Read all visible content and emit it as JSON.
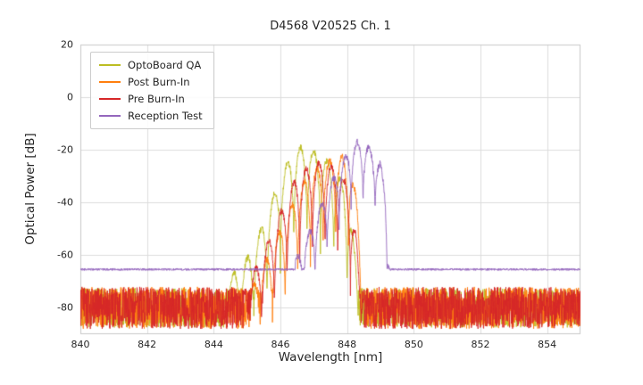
{
  "chart_data": {
    "type": "line",
    "title": "D4568 V20525 Ch. 1",
    "xlabel": "Wavelength [nm]",
    "ylabel": "Optical Power [dB]",
    "xlim": [
      840,
      855
    ],
    "ylim": [
      -90,
      20
    ],
    "xticks": [
      840,
      842,
      844,
      846,
      848,
      850,
      852,
      854
    ],
    "yticks": [
      20,
      0,
      -20,
      -40,
      -60,
      -80
    ],
    "grid": true,
    "legend_position": "upper left",
    "series": [
      {
        "name": "OptoBoard QA",
        "color": "#bcbd22",
        "noise_floor": {
          "mean": -80,
          "amplitude": 7.5
        },
        "signal": {
          "range": [
            844.3,
            848.35
          ],
          "mode_spacing": 0.4,
          "mode_phase": 846.4,
          "valley_depth": 38,
          "envelope": [
            [
              844.3,
              -69
            ],
            [
              844.8,
              -65
            ],
            [
              845.2,
              -57
            ],
            [
              845.6,
              -44
            ],
            [
              846.0,
              -30
            ],
            [
              846.3,
              -23
            ],
            [
              846.6,
              -19
            ],
            [
              846.95,
              -20
            ],
            [
              847.3,
              -23
            ],
            [
              847.6,
              -27
            ],
            [
              847.9,
              -33
            ],
            [
              848.1,
              -45
            ],
            [
              848.25,
              -62
            ],
            [
              848.35,
              -76
            ]
          ]
        }
      },
      {
        "name": "Post Burn-In",
        "color": "#ff7f0e",
        "noise_floor": {
          "mean": -80,
          "amplitude": 8
        },
        "signal": {
          "range": [
            845.1,
            848.55
          ],
          "mode_spacing": 0.38,
          "mode_phase": 847.66,
          "valley_depth": 36,
          "envelope": [
            [
              845.1,
              -73
            ],
            [
              845.5,
              -64
            ],
            [
              845.9,
              -53
            ],
            [
              846.3,
              -42
            ],
            [
              846.7,
              -32
            ],
            [
              847.1,
              -27
            ],
            [
              847.5,
              -24
            ],
            [
              847.85,
              -22
            ],
            [
              848.1,
              -27
            ],
            [
              848.3,
              -40
            ],
            [
              848.45,
              -60
            ],
            [
              848.55,
              -77
            ]
          ]
        }
      },
      {
        "name": "Pre Burn-In",
        "color": "#d62728",
        "noise_floor": {
          "mean": -80,
          "amplitude": 8
        },
        "signal": {
          "range": [
            844.9,
            848.4
          ],
          "mode_spacing": 0.38,
          "mode_phase": 846.96,
          "valley_depth": 36,
          "envelope": [
            [
              844.9,
              -73
            ],
            [
              845.3,
              -64
            ],
            [
              845.7,
              -53
            ],
            [
              846.1,
              -41
            ],
            [
              846.45,
              -31
            ],
            [
              846.8,
              -27
            ],
            [
              847.15,
              -25
            ],
            [
              847.5,
              -26
            ],
            [
              847.8,
              -29
            ],
            [
              848.05,
              -35
            ],
            [
              848.25,
              -50
            ],
            [
              848.4,
              -75
            ]
          ]
        }
      },
      {
        "name": "Reception Test",
        "color": "#9467bd",
        "noise_floor": {
          "mean": -65.4,
          "amplitude": 0.4
        },
        "signal": {
          "range": [
            846.45,
            849.28
          ],
          "mode_spacing": 0.36,
          "mode_phase": 848.12,
          "valley_depth": 26,
          "envelope": [
            [
              846.45,
              -62
            ],
            [
              846.8,
              -53
            ],
            [
              847.15,
              -43
            ],
            [
              847.5,
              -33
            ],
            [
              847.8,
              -26
            ],
            [
              848.05,
              -20
            ],
            [
              848.3,
              -17
            ],
            [
              848.55,
              -18
            ],
            [
              848.8,
              -21
            ],
            [
              849.0,
              -25
            ],
            [
              849.15,
              -35
            ],
            [
              849.22,
              -50
            ],
            [
              849.28,
              -64
            ]
          ]
        }
      }
    ]
  }
}
